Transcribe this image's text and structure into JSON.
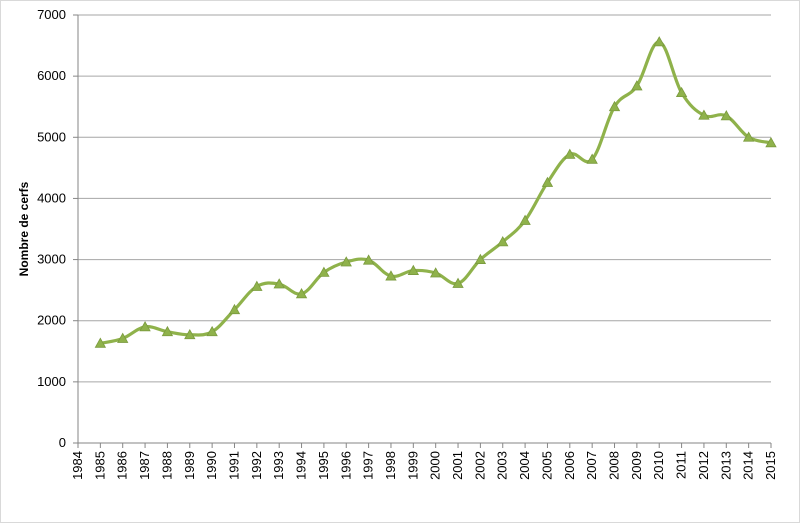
{
  "chart_data": {
    "type": "line",
    "title": "",
    "xlabel": "",
    "ylabel": "Nombre de cerfs",
    "ylim": [
      0,
      7000
    ],
    "yticks": [
      0,
      1000,
      2000,
      3000,
      4000,
      5000,
      6000,
      7000
    ],
    "x_tick_labels": [
      "1984",
      "1985",
      "1986",
      "1987",
      "1988",
      "1989",
      "1990",
      "1991",
      "1992",
      "1993",
      "1994",
      "1995",
      "1996",
      "1997",
      "1998",
      "1999",
      "2000",
      "2001",
      "2002",
      "2003",
      "2004",
      "2005",
      "2006",
      "2007",
      "2008",
      "2009",
      "2010",
      "2011",
      "2012",
      "2013",
      "2014",
      "2015"
    ],
    "grid": true,
    "legend": "none",
    "line_color": "#8fb24b",
    "marker_color": "#8fb24b",
    "marker": "triangle",
    "series": [
      {
        "x": [
          1985,
          1986,
          1987,
          1988,
          1989,
          1990,
          1991,
          1992,
          1993,
          1994,
          1995,
          1996,
          1997,
          1998,
          1999,
          2000,
          2001,
          2002,
          2003,
          2004,
          2005,
          2006,
          2007,
          2008,
          2009,
          2010,
          2011,
          2012,
          2013,
          2014,
          2015
        ],
        "values": [
          1630,
          1710,
          1900,
          1820,
          1770,
          1820,
          2180,
          2560,
          2600,
          2440,
          2790,
          2960,
          2990,
          2730,
          2820,
          2780,
          2610,
          3000,
          3290,
          3640,
          4260,
          4720,
          4640,
          5500,
          5840,
          6560,
          5730,
          5360,
          5350,
          5000,
          4910
        ]
      }
    ]
  }
}
